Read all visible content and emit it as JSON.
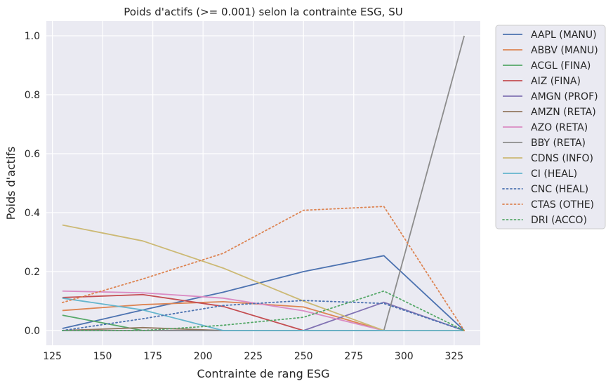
{
  "chart_data": {
    "type": "line",
    "title": "Poids d'actifs (>= 0.001) selon la contrainte ESG, SU",
    "xlabel": "Contrainte de rang ESG",
    "ylabel": "Poids d'actifs",
    "xlim": [
      122,
      338
    ],
    "ylim": [
      -0.05,
      1.05
    ],
    "xticks": [
      125,
      150,
      175,
      200,
      225,
      250,
      275,
      300,
      325
    ],
    "yticks": [
      0.0,
      0.2,
      0.4,
      0.6,
      0.8,
      1.0
    ],
    "xtick_labels": [
      "125",
      "150",
      "175",
      "200",
      "225",
      "250",
      "275",
      "300",
      "325"
    ],
    "ytick_labels": [
      "0.0",
      "0.2",
      "0.4",
      "0.6",
      "0.8",
      "1.0"
    ],
    "grid": true,
    "legend_position": "outside-right",
    "x": [
      130,
      170,
      210,
      250,
      290,
      330
    ],
    "series": [
      {
        "name": "AAPL (MANU)",
        "values": [
          0.007,
          0.07,
          0.13,
          0.2,
          0.254,
          0.0
        ],
        "color": "#4c72b0",
        "dash": "solid"
      },
      {
        "name": "ABBV (MANU)",
        "values": [
          0.068,
          0.088,
          0.098,
          0.08,
          0.0,
          0.0
        ],
        "color": "#dd8452",
        "dash": "solid"
      },
      {
        "name": "ACGL (FINA)",
        "values": [
          0.052,
          0.0,
          0.0,
          0.0,
          0.0,
          0.0
        ],
        "color": "#55a868",
        "dash": "solid"
      },
      {
        "name": "AIZ (FINA)",
        "values": [
          0.112,
          0.122,
          0.082,
          0.0,
          0.0,
          0.0
        ],
        "color": "#c44e52",
        "dash": "solid"
      },
      {
        "name": "AMGN (PROF)",
        "values": [
          0.0,
          0.0,
          0.0,
          0.0,
          0.096,
          0.0
        ],
        "color": "#8172b3",
        "dash": "solid"
      },
      {
        "name": "AMZN (RETA)",
        "values": [
          0.0,
          0.01,
          0.0,
          0.0,
          0.0,
          0.0
        ],
        "color": "#937860",
        "dash": "solid"
      },
      {
        "name": "AZO (RETA)",
        "values": [
          0.134,
          0.128,
          0.11,
          0.067,
          0.0,
          0.0
        ],
        "color": "#da8bc3",
        "dash": "solid"
      },
      {
        "name": "BBY (RETA)",
        "values": [
          0.0,
          0.0,
          0.0,
          0.0,
          0.0,
          1.0
        ],
        "color": "#8c8c8c",
        "dash": "solid"
      },
      {
        "name": "CDNS (INFO)",
        "values": [
          0.358,
          0.304,
          0.212,
          0.1,
          0.0,
          0.0
        ],
        "color": "#ccb974",
        "dash": "solid"
      },
      {
        "name": "CI (HEAL)",
        "values": [
          0.11,
          0.07,
          0.0,
          0.0,
          0.0,
          0.0
        ],
        "color": "#64b5cd",
        "dash": "solid"
      },
      {
        "name": "CNC (HEAL)",
        "values": [
          0.0,
          0.04,
          0.085,
          0.102,
          0.092,
          0.0
        ],
        "color": "#4c72b0",
        "dash": "dotted"
      },
      {
        "name": "CTAS (OTHE)",
        "values": [
          0.095,
          0.175,
          0.262,
          0.408,
          0.421,
          0.0
        ],
        "color": "#dd8452",
        "dash": "dotted"
      },
      {
        "name": "DRI (ACCO)",
        "values": [
          0.0,
          0.0,
          0.018,
          0.045,
          0.134,
          0.0
        ],
        "color": "#55a868",
        "dash": "dotted"
      }
    ]
  }
}
